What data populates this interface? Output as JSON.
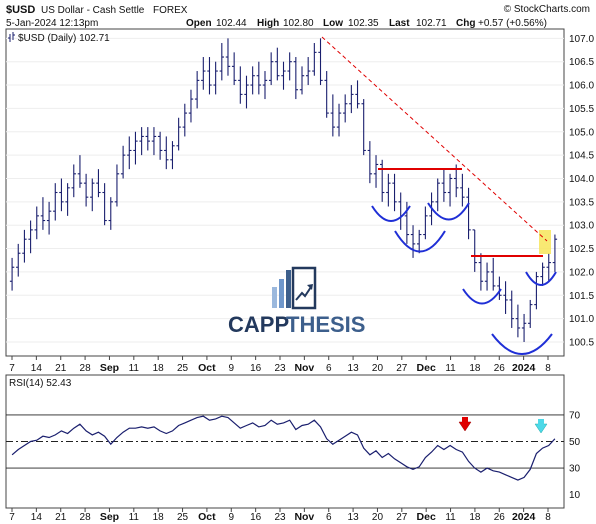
{
  "header": {
    "symbol": "$USD",
    "name": "US Dollar - Cash Settle",
    "exchange": "FOREX",
    "copyright": "© StockCharts.com",
    "date_time": "5-Jan-2024 12:13pm",
    "open_label": "Open",
    "open": "102.44",
    "high_label": "High",
    "high": "102.80",
    "low_label": "Low",
    "low": "102.35",
    "last_label": "Last",
    "last": "102.71",
    "chg_label": "Chg",
    "chg": "+0.57 (+0.56%)",
    "legend": "$USD (Daily) 102.71"
  },
  "watermark": {
    "text_dark": "CAPP",
    "text_light": "THESIS",
    "color_dark": "#23395d",
    "color_light": "#3d5f8c"
  },
  "colors": {
    "bars": "#1a1f6e",
    "support": "#e00000",
    "trend": "#e00000",
    "cup": "#1f2fd6",
    "rsi": "#1a1f6e",
    "highlight": "#f7e55a",
    "arrow_red": "#e00000",
    "arrow_cyan": "#4dd9e8"
  },
  "x_axis_labels": [
    {
      "text": "7",
      "bold": false
    },
    {
      "text": "14",
      "bold": false
    },
    {
      "text": "21",
      "bold": false
    },
    {
      "text": "28",
      "bold": false
    },
    {
      "text": "Sep",
      "bold": true
    },
    {
      "text": "11",
      "bold": false
    },
    {
      "text": "18",
      "bold": false
    },
    {
      "text": "25",
      "bold": false
    },
    {
      "text": "Oct",
      "bold": true
    },
    {
      "text": "9",
      "bold": false
    },
    {
      "text": "16",
      "bold": false
    },
    {
      "text": "23",
      "bold": false
    },
    {
      "text": "Nov",
      "bold": true
    },
    {
      "text": "6",
      "bold": false
    },
    {
      "text": "13",
      "bold": false
    },
    {
      "text": "20",
      "bold": false
    },
    {
      "text": "27",
      "bold": false
    },
    {
      "text": "Dec",
      "bold": true
    },
    {
      "text": "11",
      "bold": false
    },
    {
      "text": "18",
      "bold": false
    },
    {
      "text": "26",
      "bold": false
    },
    {
      "text": "2024",
      "bold": true
    },
    {
      "text": "8",
      "bold": false
    }
  ],
  "chart_data": [
    {
      "type": "ohlc",
      "title": "$USD (Daily) 102.71",
      "ylim": [
        100.2,
        107.2
      ],
      "y_ticks": [
        "107.0",
        "106.5",
        "106.0",
        "105.5",
        "105.0",
        "104.5",
        "104.0",
        "103.5",
        "103.0",
        "102.5",
        "102.0",
        "101.5",
        "101.0",
        "100.5"
      ],
      "series": [
        {
          "values": [
            [
              101.8,
              102.3,
              101.6,
              102.1
            ],
            [
              102.1,
              102.6,
              101.9,
              102.4
            ],
            [
              102.4,
              102.9,
              102.2,
              102.7
            ],
            [
              102.7,
              103.1,
              102.4,
              102.9
            ],
            [
              102.9,
              103.4,
              102.7,
              103.2
            ],
            [
              103.2,
              103.6,
              102.9,
              103.1
            ],
            [
              103.1,
              103.5,
              102.8,
              103.3
            ],
            [
              103.3,
              103.9,
              103.1,
              103.7
            ],
            [
              103.7,
              104.0,
              103.3,
              103.5
            ],
            [
              103.5,
              103.9,
              103.2,
              103.8
            ],
            [
              103.8,
              104.3,
              103.6,
              104.1
            ],
            [
              104.1,
              104.5,
              103.8,
              103.9
            ],
            [
              103.9,
              104.1,
              103.4,
              103.6
            ],
            [
              103.6,
              104.0,
              103.3,
              103.9
            ],
            [
              103.9,
              104.2,
              103.6,
              103.7
            ],
            [
              103.7,
              103.9,
              103.0,
              103.1
            ],
            [
              103.1,
              103.6,
              102.9,
              103.5
            ],
            [
              103.5,
              104.3,
              103.4,
              104.1
            ],
            [
              104.1,
              104.7,
              104.0,
              104.5
            ],
            [
              104.5,
              104.9,
              104.2,
              104.6
            ],
            [
              104.6,
              105.0,
              104.3,
              104.8
            ],
            [
              104.8,
              105.1,
              104.5,
              104.9
            ],
            [
              104.9,
              105.1,
              104.6,
              104.8
            ],
            [
              104.8,
              105.1,
              104.5,
              104.9
            ],
            [
              104.9,
              105.0,
              104.4,
              104.6
            ],
            [
              104.6,
              104.9,
              104.2,
              104.4
            ],
            [
              104.4,
              104.8,
              104.2,
              104.7
            ],
            [
              104.7,
              105.3,
              104.6,
              105.1
            ],
            [
              105.1,
              105.6,
              104.9,
              105.4
            ],
            [
              105.4,
              105.9,
              105.2,
              105.7
            ],
            [
              105.7,
              106.3,
              105.5,
              106.1
            ],
            [
              106.1,
              106.6,
              105.9,
              106.3
            ],
            [
              106.3,
              106.6,
              105.8,
              106.0
            ],
            [
              106.0,
              106.5,
              105.8,
              106.3
            ],
            [
              106.3,
              106.9,
              106.1,
              106.6
            ],
            [
              106.6,
              107.0,
              106.2,
              106.4
            ],
            [
              106.4,
              106.7,
              106.0,
              106.1
            ],
            [
              106.1,
              106.4,
              105.6,
              105.8
            ],
            [
              105.8,
              106.2,
              105.5,
              106.0
            ],
            [
              106.0,
              106.4,
              105.8,
              106.2
            ],
            [
              106.2,
              106.5,
              105.8,
              106.0
            ],
            [
              106.0,
              106.3,
              105.7,
              106.1
            ],
            [
              106.1,
              106.7,
              106.0,
              106.5
            ],
            [
              106.5,
              106.8,
              106.1,
              106.2
            ],
            [
              106.2,
              106.5,
              105.9,
              106.3
            ],
            [
              106.3,
              106.7,
              106.1,
              106.5
            ],
            [
              106.5,
              106.6,
              105.7,
              105.9
            ],
            [
              105.9,
              106.4,
              105.8,
              106.2
            ],
            [
              106.2,
              106.6,
              106.0,
              106.3
            ],
            [
              106.3,
              106.9,
              106.2,
              106.7
            ],
            [
              106.7,
              107.0,
              106.0,
              106.1
            ],
            [
              106.1,
              106.3,
              105.3,
              105.4
            ],
            [
              105.4,
              105.8,
              104.9,
              105.1
            ],
            [
              105.1,
              105.6,
              104.9,
              105.4
            ],
            [
              105.4,
              105.8,
              105.2,
              105.6
            ],
            [
              105.6,
              106.0,
              105.4,
              105.8
            ],
            [
              105.8,
              106.1,
              105.5,
              105.6
            ],
            [
              105.6,
              105.7,
              104.5,
              104.6
            ],
            [
              104.6,
              104.8,
              103.9,
              104.1
            ],
            [
              104.1,
              104.5,
              103.8,
              104.3
            ],
            [
              104.3,
              104.4,
              103.5,
              103.7
            ],
            [
              103.7,
              104.1,
              103.4,
              103.9
            ],
            [
              103.9,
              104.1,
              103.3,
              103.5
            ],
            [
              103.5,
              103.7,
              102.9,
              103.2
            ],
            [
              103.2,
              103.5,
              102.6,
              102.8
            ],
            [
              102.8,
              103.0,
              102.3,
              102.6
            ],
            [
              102.6,
              102.9,
              102.4,
              102.8
            ],
            [
              102.8,
              103.4,
              102.7,
              103.2
            ],
            [
              103.2,
              103.7,
              103.0,
              103.5
            ],
            [
              103.5,
              104.0,
              103.3,
              103.9
            ],
            [
              103.9,
              104.2,
              103.5,
              103.7
            ],
            [
              103.7,
              104.1,
              103.4,
              104.0
            ],
            [
              104.0,
              104.3,
              103.6,
              103.8
            ],
            [
              103.8,
              104.1,
              103.4,
              103.6
            ],
            [
              103.6,
              103.8,
              102.7,
              102.9
            ],
            [
              102.9,
              102.9,
              102.0,
              102.2
            ],
            [
              102.2,
              102.4,
              101.6,
              101.8
            ],
            [
              101.8,
              102.2,
              101.6,
              102.0
            ],
            [
              102.0,
              102.3,
              101.6,
              101.7
            ],
            [
              101.7,
              101.9,
              101.4,
              101.5
            ],
            [
              101.5,
              101.8,
              101.1,
              101.4
            ],
            [
              101.4,
              101.6,
              100.8,
              101.0
            ],
            [
              101.0,
              101.3,
              100.6,
              100.8
            ],
            [
              100.8,
              101.1,
              100.5,
              100.9
            ],
            [
              100.9,
              101.4,
              100.8,
              101.3
            ],
            [
              101.3,
              102.0,
              101.2,
              101.9
            ],
            [
              101.9,
              102.2,
              101.7,
              102.1
            ],
            [
              102.1,
              102.4,
              101.8,
              102.2
            ],
            [
              102.2,
              102.8,
              102.0,
              102.7
            ]
          ]
        }
      ]
    },
    {
      "type": "line",
      "title": "RSI(14) 52.43",
      "ylim": [
        0,
        100
      ],
      "y_ticks": [
        "70",
        "50",
        "30",
        "10"
      ],
      "reference_lines": [
        70,
        50,
        30
      ],
      "series": [
        {
          "values": [
            40,
            44,
            47,
            50,
            51,
            54,
            53,
            55,
            58,
            56,
            60,
            63,
            58,
            55,
            57,
            54,
            48,
            53,
            57,
            60,
            60,
            61,
            60,
            61,
            58,
            56,
            58,
            62,
            64,
            66,
            68,
            69,
            66,
            67,
            69,
            68,
            64,
            60,
            62,
            64,
            61,
            62,
            66,
            63,
            64,
            66,
            59,
            62,
            63,
            66,
            61,
            52,
            48,
            51,
            54,
            57,
            55,
            45,
            40,
            43,
            38,
            41,
            37,
            34,
            31,
            29,
            31,
            38,
            42,
            47,
            44,
            47,
            44,
            42,
            35,
            30,
            27,
            30,
            28,
            27,
            25,
            23,
            21,
            23,
            29,
            41,
            45,
            47,
            52
          ]
        }
      ]
    }
  ]
}
